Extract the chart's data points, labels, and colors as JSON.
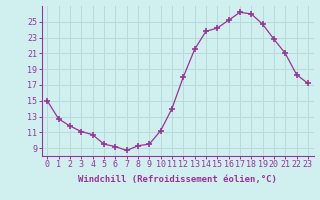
{
  "x": [
    0,
    1,
    2,
    3,
    4,
    5,
    6,
    7,
    8,
    9,
    10,
    11,
    12,
    13,
    14,
    15,
    16,
    17,
    18,
    19,
    20,
    21,
    22,
    23
  ],
  "y": [
    15.0,
    12.7,
    11.8,
    11.1,
    10.7,
    9.5,
    9.2,
    8.7,
    9.3,
    9.5,
    11.2,
    14.0,
    18.0,
    21.5,
    23.8,
    24.2,
    25.2,
    26.2,
    26.0,
    24.7,
    22.8,
    21.0,
    18.3,
    17.2
  ],
  "line_color": "#993399",
  "marker": "+",
  "marker_size": 4,
  "bg_color": "#d0f0f0",
  "grid_color": "#b8dada",
  "xlabel": "Windchill (Refroidissement éolien,°C)",
  "xlim": [
    -0.5,
    23.5
  ],
  "ylim": [
    8.0,
    27.0
  ],
  "yticks": [
    9,
    11,
    13,
    15,
    17,
    19,
    21,
    23,
    25
  ],
  "xticks": [
    0,
    1,
    2,
    3,
    4,
    5,
    6,
    7,
    8,
    9,
    10,
    11,
    12,
    13,
    14,
    15,
    16,
    17,
    18,
    19,
    20,
    21,
    22,
    23
  ],
  "font_family": "monospace",
  "label_fontsize": 6.5,
  "tick_fontsize": 6.0,
  "linewidth": 0.9
}
